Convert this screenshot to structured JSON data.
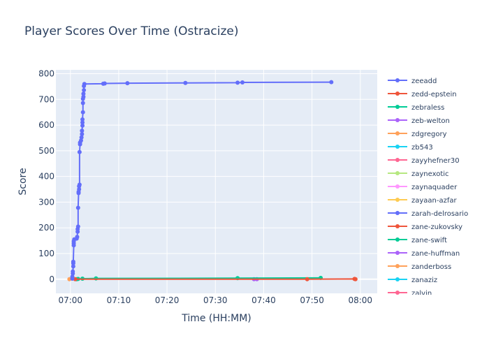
{
  "chart_data": {
    "type": "line",
    "title": "Player Scores Over Time (Ostracize)",
    "xlabel": "Time (HH:MM)",
    "ylabel": "Score",
    "x_ticks": [
      "07:00",
      "07:10",
      "07:20",
      "07:30",
      "07:40",
      "07:50",
      "08:00"
    ],
    "y_ticks": [
      0,
      100,
      200,
      300,
      400,
      500,
      600,
      700,
      800
    ],
    "xlim": [
      "06:57",
      "08:03.5"
    ],
    "ylim": [
      -55,
      815
    ],
    "grid": true,
    "legend_position": "right",
    "series": [
      {
        "name": "zeeadd",
        "color": "#636efa",
        "points": [
          [
            "07:00.4",
            2
          ],
          [
            "07:00.4",
            10
          ],
          [
            "07:00.5",
            22
          ],
          [
            "07:00.5",
            30
          ],
          [
            "07:00.6",
            50
          ],
          [
            "07:00.6",
            62
          ],
          [
            "07:00.6",
            68
          ],
          [
            "07:00.7",
            132
          ],
          [
            "07:00.7",
            140
          ],
          [
            "07:00.7",
            148
          ],
          [
            "07:00.8",
            155
          ],
          [
            "07:01.3",
            158
          ],
          [
            "07:01.4",
            165
          ],
          [
            "07:01.5",
            185
          ],
          [
            "07:01.5",
            195
          ],
          [
            "07:01.6",
            205
          ],
          [
            "07:01.6",
            278
          ],
          [
            "07:01.7",
            335
          ],
          [
            "07:01.7",
            340
          ],
          [
            "07:01.8",
            350
          ],
          [
            "07:01.8",
            362
          ],
          [
            "07:01.9",
            368
          ],
          [
            "07:01.9",
            495
          ],
          [
            "07:02.0",
            525
          ],
          [
            "07:02.0",
            532
          ],
          [
            "07:02.2",
            540
          ],
          [
            "07:02.3",
            552
          ],
          [
            "07:02.4",
            565
          ],
          [
            "07:02.4",
            578
          ],
          [
            "07:02.5",
            598
          ],
          [
            "07:02.5",
            610
          ],
          [
            "07:02.5",
            622
          ],
          [
            "07:02.6",
            650
          ],
          [
            "07:02.6",
            686
          ],
          [
            "07:02.6",
            702
          ],
          [
            "07:02.7",
            710
          ],
          [
            "07:02.7",
            722
          ],
          [
            "07:02.8",
            736
          ],
          [
            "07:02.8",
            752
          ],
          [
            "07:02.9",
            760
          ],
          [
            "07:06.8",
            761
          ],
          [
            "07:07.1",
            762
          ],
          [
            "07:11.8",
            763
          ],
          [
            "07:23.8",
            764
          ],
          [
            "07:34.6",
            765
          ],
          [
            "07:35.6",
            766
          ],
          [
            "07:54.0",
            767
          ]
        ]
      },
      {
        "name": "zedd-epstein",
        "color": "#ef553b",
        "points": [
          [
            "07:01.0",
            0
          ],
          [
            "07:49.0",
            0
          ],
          [
            "07:58.8",
            1
          ],
          [
            "07:59.0",
            0
          ]
        ]
      },
      {
        "name": "zebraless",
        "color": "#00cc96",
        "points": [
          [
            "07:01.3",
            0
          ],
          [
            "07:01.6",
            1
          ],
          [
            "07:02.5",
            2
          ],
          [
            "07:05.3",
            3
          ],
          [
            "07:34.6",
            4
          ],
          [
            "07:51.8",
            5
          ]
        ]
      },
      {
        "name": "zeb-welton",
        "color": "#ab63fa",
        "points": [
          [
            "07:38.0",
            0
          ],
          [
            "07:38.6",
            0
          ]
        ]
      },
      {
        "name": "zdgregory",
        "color": "#ffa15a",
        "points": [
          [
            "06:59.8",
            0
          ]
        ]
      },
      {
        "name": "zb543",
        "color": "#19d3f3",
        "points": []
      },
      {
        "name": "zayyhefner30",
        "color": "#ff6692",
        "points": []
      },
      {
        "name": "zaynexotic",
        "color": "#b6e880",
        "points": []
      },
      {
        "name": "zaynaquader",
        "color": "#ff97ff",
        "points": []
      },
      {
        "name": "zayaan-azfar",
        "color": "#fecb52",
        "points": []
      },
      {
        "name": "zarah-delrosario",
        "color": "#636efa",
        "points": []
      },
      {
        "name": "zane-zukovsky",
        "color": "#ef553b",
        "points": []
      },
      {
        "name": "zane-swift",
        "color": "#00cc96",
        "points": []
      },
      {
        "name": "zane-huffman",
        "color": "#ab63fa",
        "points": []
      },
      {
        "name": "zanderboss",
        "color": "#ffa15a",
        "points": []
      },
      {
        "name": "zanaziz",
        "color": "#19d3f3",
        "points": []
      },
      {
        "name": "zalvin",
        "color": "#ff6692",
        "points": []
      }
    ]
  }
}
